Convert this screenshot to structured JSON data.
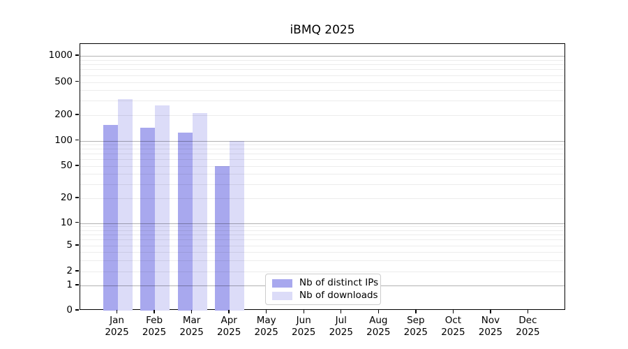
{
  "title": "iBMQ 2025",
  "colors": {
    "distinct_ips": "#a8a8ee",
    "downloads": "#dcdcf8",
    "major_grid": "#b3b3b3",
    "minor_grid": "#ececec",
    "axis": "#000000",
    "legend_border": "#cccccc"
  },
  "y_axis": {
    "tick_labels": [
      "1000",
      "500",
      "200",
      "100",
      "50",
      "20",
      "10",
      "5",
      "2",
      "1",
      "0"
    ]
  },
  "x_axis": {
    "year": "2025",
    "months": [
      "Jan",
      "Feb",
      "Mar",
      "Apr",
      "May",
      "Jun",
      "Jul",
      "Aug",
      "Sep",
      "Oct",
      "Nov",
      "Dec"
    ]
  },
  "legend": {
    "entries": [
      {
        "label": "Nb of distinct IPs",
        "color": "#a8a8ee"
      },
      {
        "label": "Nb of downloads",
        "color": "#dcdcf8"
      }
    ]
  },
  "chart_data": {
    "type": "bar",
    "title": "iBMQ 2025",
    "categories": [
      "Jan 2025",
      "Feb 2025",
      "Mar 2025",
      "Apr 2025",
      "May 2025",
      "Jun 2025",
      "Jul 2025",
      "Aug 2025",
      "Sep 2025",
      "Oct 2025",
      "Nov 2025",
      "Dec 2025"
    ],
    "series": [
      {
        "name": "Nb of distinct IPs",
        "color": "#a8a8ee",
        "values": [
          152,
          143,
          125,
          50,
          null,
          null,
          null,
          null,
          null,
          null,
          null,
          null
        ]
      },
      {
        "name": "Nb of downloads",
        "color": "#dcdcf8",
        "values": [
          310,
          260,
          210,
          100,
          null,
          null,
          null,
          null,
          null,
          null,
          null,
          null
        ]
      }
    ],
    "xlabel": "",
    "ylabel": "",
    "y_scale": "log-with-zero-baseline",
    "y_ticks": [
      0,
      1,
      2,
      5,
      10,
      20,
      50,
      100,
      200,
      500,
      1000
    ],
    "ylim": [
      0,
      1500
    ],
    "grid": true,
    "legend_position": "lower-center"
  }
}
